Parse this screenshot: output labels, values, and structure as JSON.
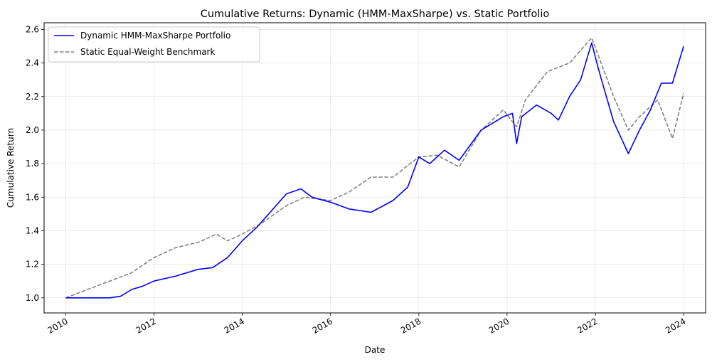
{
  "chart_data": {
    "type": "line",
    "title": "Cumulative Returns: Dynamic (HMM-MaxSharpe) vs. Static Portfolio",
    "xlabel": "Date",
    "ylabel": "Cumulative Return",
    "xlim": [
      "2009-07-06",
      "2024-07-01"
    ],
    "ylim": [
      0.91,
      2.64
    ],
    "x_ticks": [
      "2010-01-01",
      "2012-01-01",
      "2014-01-01",
      "2016-01-01",
      "2018-01-01",
      "2020-01-01",
      "2022-01-01",
      "2024-01-01"
    ],
    "x_tick_labels": [
      "2010",
      "2012",
      "2014",
      "2016",
      "2018",
      "2020",
      "2022",
      "2024"
    ],
    "y_ticks": [
      1.0,
      1.2,
      1.4,
      1.6,
      1.8,
      2.0,
      2.2,
      2.4,
      2.6
    ],
    "y_tick_labels": [
      "1.0",
      "1.2",
      "1.4",
      "1.6",
      "1.8",
      "2.0",
      "2.2",
      "2.4",
      "2.6"
    ],
    "grid": true,
    "legend_position": "upper-left",
    "series": [
      {
        "name": "Dynamic HMM-MaxSharpe Portfolio",
        "color": "#0000ff",
        "style": "solid",
        "points": [
          [
            "2010-01-01",
            1.0
          ],
          [
            "2010-07-01",
            1.0
          ],
          [
            "2011-01-01",
            1.0
          ],
          [
            "2011-04-01",
            1.01
          ],
          [
            "2011-07-01",
            1.05
          ],
          [
            "2011-10-01",
            1.07
          ],
          [
            "2012-01-01",
            1.1
          ],
          [
            "2012-07-01",
            1.13
          ],
          [
            "2013-01-01",
            1.17
          ],
          [
            "2013-05-01",
            1.18
          ],
          [
            "2013-09-01",
            1.24
          ],
          [
            "2014-01-01",
            1.34
          ],
          [
            "2014-05-01",
            1.42
          ],
          [
            "2014-09-01",
            1.52
          ],
          [
            "2015-01-01",
            1.62
          ],
          [
            "2015-05-01",
            1.65
          ],
          [
            "2015-08-01",
            1.6
          ],
          [
            "2016-01-01",
            1.57
          ],
          [
            "2016-06-01",
            1.53
          ],
          [
            "2016-12-01",
            1.51
          ],
          [
            "2017-06-01",
            1.58
          ],
          [
            "2017-10-01",
            1.66
          ],
          [
            "2018-01-01",
            1.84
          ],
          [
            "2018-04-01",
            1.8
          ],
          [
            "2018-08-01",
            1.88
          ],
          [
            "2018-12-01",
            1.82
          ],
          [
            "2019-06-01",
            2.0
          ],
          [
            "2019-12-01",
            2.08
          ],
          [
            "2020-02-15",
            2.1
          ],
          [
            "2020-03-20",
            1.92
          ],
          [
            "2020-05-01",
            2.08
          ],
          [
            "2020-09-01",
            2.15
          ],
          [
            "2021-01-01",
            2.1
          ],
          [
            "2021-03-01",
            2.06
          ],
          [
            "2021-06-01",
            2.2
          ],
          [
            "2021-09-01",
            2.3
          ],
          [
            "2021-12-01",
            2.52
          ],
          [
            "2022-02-01",
            2.35
          ],
          [
            "2022-06-01",
            2.05
          ],
          [
            "2022-10-01",
            1.86
          ],
          [
            "2023-01-01",
            2.0
          ],
          [
            "2023-04-01",
            2.12
          ],
          [
            "2023-07-01",
            2.28
          ],
          [
            "2023-10-01",
            2.28
          ],
          [
            "2024-01-01",
            2.5
          ]
        ]
      },
      {
        "name": "Static Equal-Weight Benchmark",
        "color": "#808080",
        "style": "dashed",
        "points": [
          [
            "2010-01-01",
            1.0
          ],
          [
            "2010-07-01",
            1.05
          ],
          [
            "2011-01-01",
            1.1
          ],
          [
            "2011-07-01",
            1.15
          ],
          [
            "2012-01-01",
            1.24
          ],
          [
            "2012-07-01",
            1.3
          ],
          [
            "2013-01-01",
            1.33
          ],
          [
            "2013-06-01",
            1.38
          ],
          [
            "2013-09-01",
            1.34
          ],
          [
            "2014-01-01",
            1.38
          ],
          [
            "2014-06-01",
            1.44
          ],
          [
            "2015-01-01",
            1.55
          ],
          [
            "2015-06-01",
            1.6
          ],
          [
            "2016-01-01",
            1.58
          ],
          [
            "2016-06-01",
            1.63
          ],
          [
            "2016-12-01",
            1.72
          ],
          [
            "2017-06-01",
            1.72
          ],
          [
            "2018-01-01",
            1.84
          ],
          [
            "2018-06-01",
            1.85
          ],
          [
            "2018-12-01",
            1.78
          ],
          [
            "2019-06-01",
            2.0
          ],
          [
            "2019-12-01",
            2.12
          ],
          [
            "2020-03-20",
            2.02
          ],
          [
            "2020-06-01",
            2.18
          ],
          [
            "2020-12-01",
            2.35
          ],
          [
            "2021-06-01",
            2.4
          ],
          [
            "2021-12-01",
            2.55
          ],
          [
            "2022-06-01",
            2.2
          ],
          [
            "2022-10-01",
            2.0
          ],
          [
            "2023-01-01",
            2.08
          ],
          [
            "2023-06-01",
            2.18
          ],
          [
            "2023-10-01",
            1.95
          ],
          [
            "2024-01-01",
            2.22
          ]
        ]
      }
    ]
  }
}
